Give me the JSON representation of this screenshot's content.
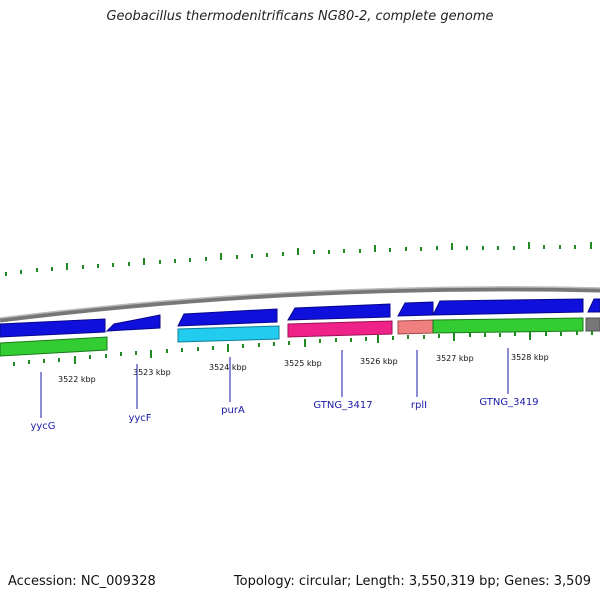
{
  "title": "Geobacillus thermodenitrificans NG80-2, complete genome",
  "footer": {
    "accession": "Accession: NC_009328",
    "summary": "Topology: circular; Length: 3,550,319 bp; Genes: 3,509"
  },
  "colors": {
    "forward_strand": "#1010dd",
    "rna_gene_strand": "#33cc33",
    "backbone": "#999999",
    "cyan_gene": "#22ccee",
    "magenta_gene": "#ee2288",
    "salmon_gene": "#f08080",
    "gc_skew_ticks": "#228822",
    "label_color": "#1a1aa8"
  },
  "scale": {
    "unit": "kbp",
    "ticks": [
      "3522 kbp",
      "3523 kbp",
      "3524 kbp",
      "3525 kbp",
      "3526 kbp",
      "3527 kbp",
      "3528 kbp"
    ]
  },
  "gene_labels": [
    "yycG",
    "yycF",
    "purA",
    "GTNG_3417",
    "rplI",
    "GTNG_3419"
  ]
}
